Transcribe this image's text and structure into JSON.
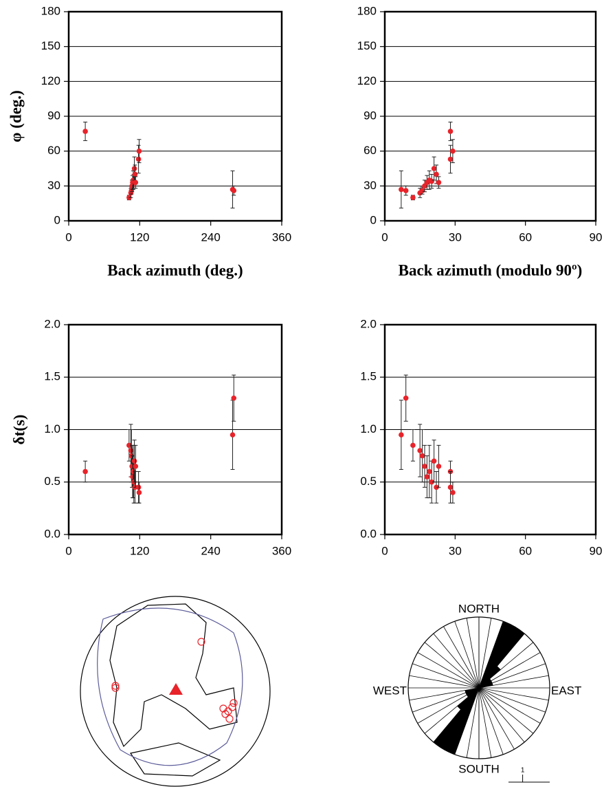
{
  "chart_data": [
    {
      "type": "scatter",
      "ylabel": "φ (deg.)",
      "xlabel": "Back azimuth (deg.)",
      "x": [
        28,
        277,
        279,
        102,
        105,
        106,
        107,
        108,
        109,
        110,
        111,
        112,
        113,
        118,
        119
      ],
      "series": [
        {
          "color": "#e8232a",
          "values": [
            77,
            27,
            26,
            20,
            24,
            26,
            30,
            33,
            35,
            34,
            45,
            40,
            33,
            53,
            60
          ],
          "errors": [
            8,
            16,
            4,
            2,
            4,
            3,
            5,
            6,
            8,
            6,
            10,
            8,
            5,
            12,
            10
          ]
        }
      ],
      "xlim": [
        0,
        360
      ],
      "xticks": [
        0,
        120,
        240,
        360
      ],
      "ylim": [
        0,
        180
      ],
      "yticks": [
        0,
        30,
        60,
        90,
        120,
        150,
        180
      ],
      "grid": true
    },
    {
      "type": "scatter",
      "xlabel": "Back azimuth (modulo 90º)",
      "x": [
        28,
        7,
        9,
        12,
        15,
        16,
        17,
        18,
        19,
        20,
        21,
        22,
        23,
        28,
        29
      ],
      "series": [
        {
          "color": "#e8232a",
          "values": [
            77,
            27,
            26,
            20,
            24,
            26,
            30,
            33,
            35,
            34,
            45,
            40,
            33,
            53,
            60
          ],
          "errors": [
            8,
            16,
            4,
            2,
            4,
            3,
            5,
            6,
            8,
            6,
            10,
            8,
            5,
            12,
            10
          ]
        }
      ],
      "xlim": [
        0,
        90
      ],
      "xticks": [
        0,
        30,
        60,
        90
      ],
      "ylim": [
        0,
        180
      ],
      "yticks": [
        0,
        30,
        60,
        90,
        120,
        150,
        180
      ],
      "grid": true
    },
    {
      "type": "scatter",
      "ylabel": "δt(s)",
      "x": [
        28,
        277,
        279,
        102,
        105,
        106,
        107,
        108,
        109,
        110,
        111,
        112,
        113,
        118,
        119
      ],
      "series": [
        {
          "color": "#e8232a",
          "values": [
            0.6,
            0.95,
            1.3,
            0.85,
            0.8,
            0.75,
            0.65,
            0.55,
            0.6,
            0.5,
            0.7,
            0.45,
            0.65,
            0.45,
            0.4
          ],
          "errors": [
            0.1,
            0.33,
            0.22,
            0.15,
            0.25,
            0.25,
            0.2,
            0.2,
            0.25,
            0.2,
            0.2,
            0.15,
            0.2,
            0.15,
            0.1
          ]
        }
      ],
      "xlim": [
        0,
        360
      ],
      "xticks": [
        0,
        120,
        240,
        360
      ],
      "ylim": [
        0,
        2
      ],
      "yticks": [
        {
          "value": 0,
          "label": "0.0"
        },
        {
          "value": 0.5,
          "label": "0.5"
        },
        {
          "value": 1,
          "label": "1.0"
        },
        {
          "value": 1.5,
          "label": "1.5"
        },
        {
          "value": 2,
          "label": "2.0"
        }
      ],
      "grid": true
    },
    {
      "type": "scatter",
      "x": [
        28,
        7,
        9,
        12,
        15,
        16,
        17,
        18,
        19,
        20,
        21,
        22,
        23,
        28,
        29
      ],
      "series": [
        {
          "color": "#e8232a",
          "values": [
            0.6,
            0.95,
            1.3,
            0.85,
            0.8,
            0.75,
            0.65,
            0.55,
            0.6,
            0.5,
            0.7,
            0.45,
            0.65,
            0.45,
            0.4
          ],
          "errors": [
            0.1,
            0.33,
            0.22,
            0.15,
            0.25,
            0.25,
            0.2,
            0.2,
            0.25,
            0.2,
            0.2,
            0.15,
            0.2,
            0.15,
            0.1
          ]
        }
      ],
      "xlim": [
        0,
        90
      ],
      "xticks": [
        0,
        30,
        60,
        90
      ],
      "ylim": [
        0,
        2
      ],
      "yticks": [
        {
          "value": 0,
          "label": "0.0"
        },
        {
          "value": 0.5,
          "label": "0.5"
        },
        {
          "value": 1,
          "label": "1.0"
        },
        {
          "value": 1.5,
          "label": "1.5"
        },
        {
          "value": 2,
          "label": "2.0"
        }
      ],
      "grid": true
    },
    {
      "type": "rose",
      "labels": [
        "NORTH",
        "EAST",
        "SOUTH",
        "WEST"
      ],
      "bins": [
        0,
        10,
        20,
        30,
        40,
        50,
        60,
        70,
        80,
        90,
        100,
        110,
        120,
        130,
        140,
        150,
        160,
        170,
        180
      ],
      "counts": [
        0,
        0,
        5,
        5,
        2,
        1,
        1,
        1,
        0,
        0,
        0,
        0,
        0,
        0,
        0,
        0,
        0,
        0
      ],
      "ylim": [
        0,
        5
      ],
      "scale": 1,
      "color": "#000000"
    }
  ]
}
